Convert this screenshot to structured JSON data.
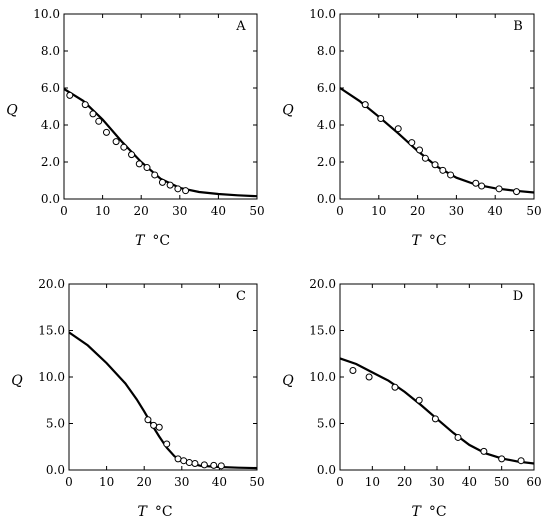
{
  "chart_data": [
    {
      "type": "scatter",
      "panel": "A",
      "xlabel": "T °C",
      "ylabel": "Q",
      "xlim": [
        0,
        50
      ],
      "ylim": [
        0,
        10
      ],
      "x_ticks": [
        "0",
        "10",
        "20",
        "30",
        "40",
        "50"
      ],
      "y_ticks": [
        "0.0",
        "2.0",
        "4.0",
        "6.0",
        "8.0",
        "10.0"
      ],
      "series": [
        {
          "kind": "observed",
          "points": [
            [
              1.5,
              5.6
            ],
            [
              5.5,
              5.1
            ],
            [
              7.5,
              4.6
            ],
            [
              9,
              4.2
            ],
            [
              11,
              3.6
            ],
            [
              13.5,
              3.1
            ],
            [
              15.5,
              2.8
            ],
            [
              17.5,
              2.4
            ],
            [
              19.5,
              1.9
            ],
            [
              21.5,
              1.7
            ],
            [
              23.5,
              1.3
            ],
            [
              25.5,
              0.9
            ],
            [
              27.5,
              0.75
            ],
            [
              29.5,
              0.55
            ],
            [
              31.5,
              0.45
            ]
          ]
        },
        {
          "kind": "fitted",
          "points": [
            [
              0,
              5.95
            ],
            [
              5,
              5.3
            ],
            [
              10,
              4.3
            ],
            [
              15,
              3.1
            ],
            [
              20,
              2.0
            ],
            [
              25,
              1.1
            ],
            [
              30,
              0.6
            ],
            [
              35,
              0.38
            ],
            [
              40,
              0.27
            ],
            [
              45,
              0.2
            ],
            [
              50,
              0.15
            ]
          ]
        }
      ]
    },
    {
      "type": "scatter",
      "panel": "B",
      "xlabel": "T °C",
      "ylabel": "Q",
      "xlim": [
        0,
        50
      ],
      "ylim": [
        0,
        10
      ],
      "x_ticks": [
        "0",
        "10",
        "20",
        "30",
        "40",
        "50"
      ],
      "y_ticks": [
        "0.0",
        "2.0",
        "4.0",
        "6.0",
        "8.0",
        "10.0"
      ],
      "series": [
        {
          "kind": "observed",
          "points": [
            [
              6.5,
              5.1
            ],
            [
              10.5,
              4.35
            ],
            [
              15,
              3.8
            ],
            [
              18.5,
              3.05
            ],
            [
              20.5,
              2.65
            ],
            [
              22,
              2.2
            ],
            [
              24.5,
              1.85
            ],
            [
              26.5,
              1.55
            ],
            [
              28.5,
              1.3
            ],
            [
              35,
              0.85
            ],
            [
              36.5,
              0.7
            ],
            [
              41,
              0.55
            ],
            [
              45.5,
              0.4
            ]
          ]
        },
        {
          "kind": "fitted",
          "points": [
            [
              0,
              6.0
            ],
            [
              5,
              5.3
            ],
            [
              10,
              4.45
            ],
            [
              15,
              3.55
            ],
            [
              20,
              2.6
            ],
            [
              25,
              1.75
            ],
            [
              30,
              1.15
            ],
            [
              35,
              0.78
            ],
            [
              40,
              0.58
            ],
            [
              45,
              0.45
            ],
            [
              50,
              0.35
            ]
          ]
        }
      ]
    },
    {
      "type": "scatter",
      "panel": "C",
      "xlabel": "T °C",
      "ylabel": "Q",
      "xlim": [
        0,
        50
      ],
      "ylim": [
        0,
        20
      ],
      "x_ticks": [
        "0",
        "10",
        "20",
        "30",
        "40",
        "50"
      ],
      "y_ticks": [
        "0.0",
        "5.0",
        "10.0",
        "15.0",
        "20.0"
      ],
      "series": [
        {
          "kind": "observed",
          "points": [
            [
              21,
              5.4
            ],
            [
              22.5,
              4.8
            ],
            [
              24,
              4.6
            ],
            [
              26,
              2.8
            ],
            [
              29,
              1.2
            ],
            [
              30.5,
              1.0
            ],
            [
              32,
              0.8
            ],
            [
              33.5,
              0.7
            ],
            [
              36,
              0.55
            ],
            [
              38.5,
              0.5
            ],
            [
              40.5,
              0.45
            ]
          ]
        },
        {
          "kind": "fitted",
          "points": [
            [
              0,
              14.8
            ],
            [
              5,
              13.4
            ],
            [
              10,
              11.5
            ],
            [
              15,
              9.3
            ],
            [
              18,
              7.6
            ],
            [
              20,
              6.3
            ],
            [
              22,
              4.9
            ],
            [
              24,
              3.6
            ],
            [
              26,
              2.4
            ],
            [
              28,
              1.5
            ],
            [
              30,
              0.95
            ],
            [
              35,
              0.45
            ],
            [
              40,
              0.32
            ],
            [
              45,
              0.25
            ],
            [
              50,
              0.2
            ]
          ]
        }
      ]
    },
    {
      "type": "scatter",
      "panel": "D",
      "xlabel": "T °C",
      "ylabel": "Q",
      "xlim": [
        0,
        60
      ],
      "ylim": [
        0,
        20
      ],
      "x_ticks": [
        "0",
        "10",
        "20",
        "30",
        "40",
        "50",
        "60"
      ],
      "y_ticks": [
        "0.0",
        "5.0",
        "10.0",
        "15.0",
        "20.0"
      ],
      "series": [
        {
          "kind": "observed",
          "points": [
            [
              4,
              10.7
            ],
            [
              9,
              10.0
            ],
            [
              17,
              8.9
            ],
            [
              24.5,
              7.5
            ],
            [
              29.5,
              5.5
            ],
            [
              36.5,
              3.5
            ],
            [
              44.5,
              2.0
            ],
            [
              50,
              1.2
            ],
            [
              56,
              1.0
            ]
          ]
        },
        {
          "kind": "fitted",
          "points": [
            [
              0,
              12.0
            ],
            [
              5,
              11.4
            ],
            [
              10,
              10.5
            ],
            [
              15,
              9.6
            ],
            [
              20,
              8.4
            ],
            [
              25,
              7.0
            ],
            [
              30,
              5.5
            ],
            [
              35,
              4.0
            ],
            [
              40,
              2.7
            ],
            [
              45,
              1.8
            ],
            [
              50,
              1.25
            ],
            [
              55,
              0.9
            ],
            [
              60,
              0.7
            ]
          ]
        }
      ]
    }
  ]
}
